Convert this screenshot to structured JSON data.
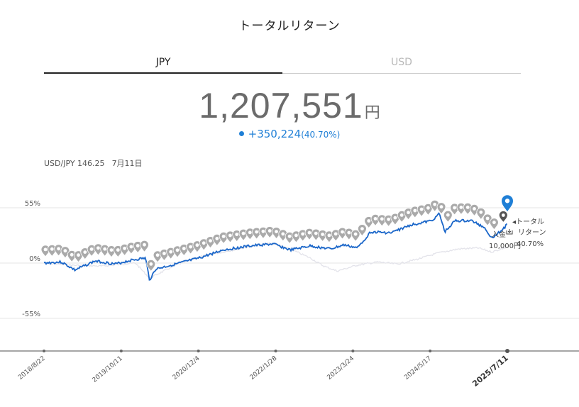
{
  "title": "トータルリターン",
  "tabs": [
    {
      "label": "JPY",
      "active": true
    },
    {
      "label": "USD",
      "active": false
    }
  ],
  "summary": {
    "amount": "1,207,551",
    "unit": "円",
    "change": "+350,224",
    "change_pct": "(40.70%)"
  },
  "fx": {
    "pair": "USD/JPY 146.25",
    "date": "7月11日"
  },
  "colors": {
    "series": "#1a66c9",
    "benchmark": "#e3e3ea",
    "marker": "#aaaaaa",
    "accent": "#1f7fd6"
  },
  "annotations": {
    "deposit_label": "入金",
    "deposit_icon": "cash-deposit-icon",
    "deposit_amount": "10,000円",
    "return_label_1": "◂トータル",
    "return_label_2": "リターン",
    "return_pct": "40.70%"
  },
  "chart_data": {
    "type": "line",
    "title": "トータルリターン",
    "xlabel": "",
    "ylabel": "",
    "yticks": [
      "55%",
      "0%",
      "-55%"
    ],
    "ylim": [
      -88,
      80
    ],
    "grid": true,
    "x_tick_labels": [
      "2018/8/22",
      "2019/10/11",
      "2020/12/4",
      "2022/1/28",
      "2023/3/24",
      "2024/5/17",
      "2025/7/11"
    ],
    "series": [
      {
        "values": [
          [
            2018.64,
            0
          ],
          [
            2018.9,
            1
          ],
          [
            2019.1,
            -7
          ],
          [
            2019.4,
            2
          ],
          [
            2019.7,
            -1
          ],
          [
            2019.95,
            3
          ],
          [
            2020.15,
            5
          ],
          [
            2020.21,
            -17
          ],
          [
            2020.3,
            -6
          ],
          [
            2020.6,
            -1
          ],
          [
            2020.95,
            5
          ],
          [
            2021.3,
            13
          ],
          [
            2021.7,
            17
          ],
          [
            2022.05,
            19
          ],
          [
            2022.3,
            13
          ],
          [
            2022.6,
            17
          ],
          [
            2022.9,
            14
          ],
          [
            2023.1,
            18
          ],
          [
            2023.3,
            15
          ],
          [
            2023.5,
            31
          ],
          [
            2023.8,
            30
          ],
          [
            2024.1,
            38
          ],
          [
            2024.4,
            42
          ],
          [
            2024.52,
            49
          ],
          [
            2024.6,
            31
          ],
          [
            2024.75,
            42
          ],
          [
            2025.0,
            42
          ],
          [
            2025.2,
            35
          ],
          [
            2025.29,
            25
          ],
          [
            2025.4,
            30
          ],
          [
            2025.5,
            36
          ],
          [
            2025.53,
            40.7
          ]
        ]
      },
      {
        "values": [
          [
            2018.64,
            0
          ],
          [
            2019.0,
            -2
          ],
          [
            2019.5,
            -3
          ],
          [
            2020.0,
            0
          ],
          [
            2020.21,
            -15
          ],
          [
            2020.6,
            -2
          ],
          [
            2021.0,
            7
          ],
          [
            2021.6,
            15
          ],
          [
            2022.0,
            20
          ],
          [
            2022.3,
            14
          ],
          [
            2022.6,
            5
          ],
          [
            2022.8,
            -3
          ],
          [
            2023.0,
            -8
          ],
          [
            2023.3,
            -2
          ],
          [
            2023.6,
            1
          ],
          [
            2023.9,
            -1
          ],
          [
            2024.2,
            4
          ],
          [
            2024.5,
            10
          ],
          [
            2024.8,
            14
          ],
          [
            2025.1,
            15
          ],
          [
            2025.3,
            11
          ],
          [
            2025.53,
            16
          ]
        ]
      }
    ]
  }
}
